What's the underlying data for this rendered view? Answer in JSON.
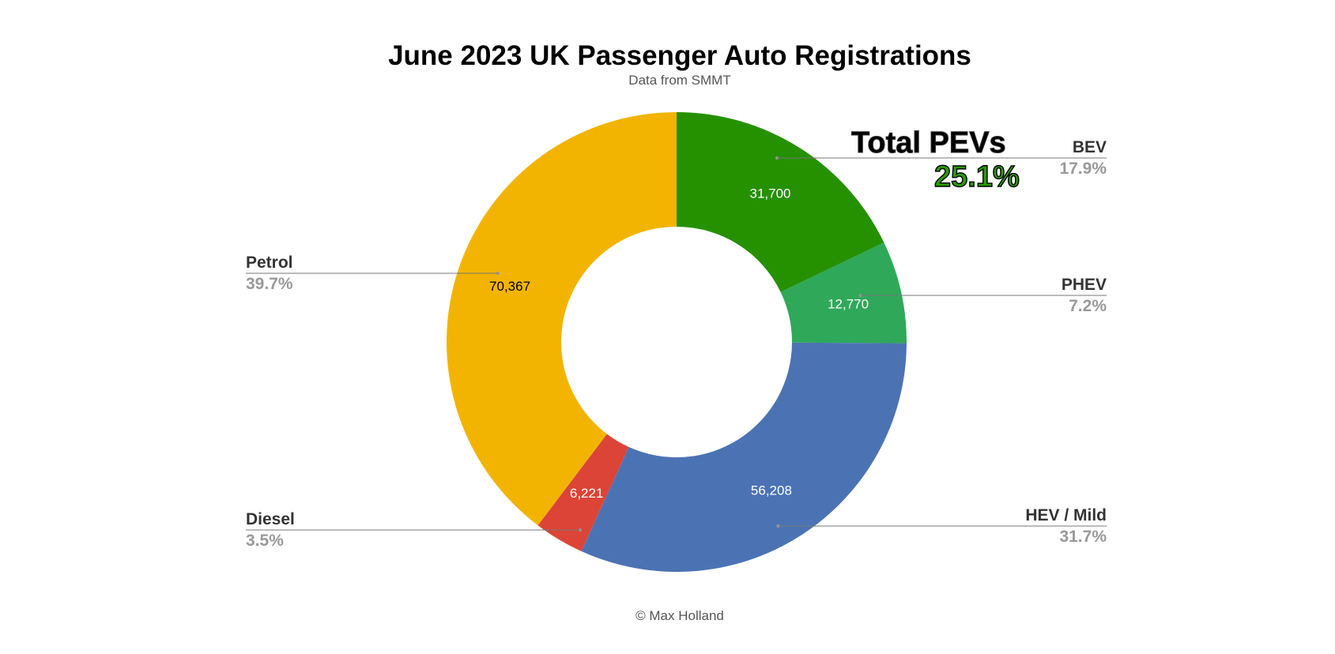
{
  "colors": {
    "BEV": "#259100",
    "PHEV": "#2fa85a",
    "HEV / Mild": "#4b73b4",
    "Diesel": "#dc4437",
    "Petrol": "#f2b400"
  },
  "chart_data": {
    "type": "pie",
    "donut": true,
    "title": "June 2023 UK Passenger Auto Registrations",
    "subtitle": "Data from SMMT",
    "credit": "© Max Holland",
    "slices": [
      {
        "name": "BEV",
        "value": 31700,
        "label": "31,700",
        "percent": "17.9%",
        "legend_side": "right"
      },
      {
        "name": "PHEV",
        "value": 12770,
        "label": "12,770",
        "percent": "7.2%",
        "legend_side": "right"
      },
      {
        "name": "HEV / Mild",
        "legend_text": "HEV / Mild",
        "value": 56208,
        "label": "56,208",
        "percent": "31.7%",
        "legend_side": "right"
      },
      {
        "name": "Diesel",
        "value": 6221,
        "label": "6,221",
        "percent": "3.5%",
        "legend_side": "left"
      },
      {
        "name": "Petrol",
        "value": 70367,
        "label": "70,367",
        "percent": "39.7%",
        "legend_side": "left"
      }
    ],
    "annotation": {
      "title": "Total PEVs",
      "value": "25.1%"
    }
  }
}
